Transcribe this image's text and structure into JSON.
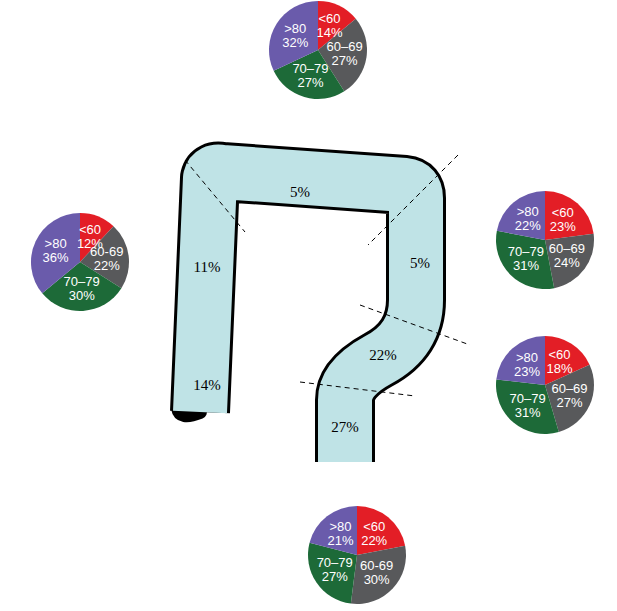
{
  "chart_data": [
    {
      "type": "pie",
      "categories": [
        "<60",
        "60–69",
        "70–79",
        ">80"
      ],
      "values": [
        14,
        27,
        27,
        32
      ],
      "value_labels": [
        "14%",
        "27%",
        "27%",
        "32%"
      ],
      "colors": [
        "#e31e26",
        "#58595b",
        "#1d6a38",
        "#6a5bab"
      ],
      "data_labels": true
    },
    {
      "type": "pie",
      "categories": [
        "<60",
        "60-69",
        "70–79",
        ">80"
      ],
      "values": [
        12,
        22,
        30,
        36
      ],
      "value_labels": [
        "12%",
        "22%",
        "30%",
        "36%"
      ],
      "colors": [
        "#e31e26",
        "#58595b",
        "#1d6a38",
        "#6a5bab"
      ],
      "data_labels": true
    },
    {
      "type": "pie",
      "categories": [
        "<60",
        "60–69",
        "70–79",
        ">80"
      ],
      "values": [
        23,
        24,
        31,
        22
      ],
      "value_labels": [
        "23%",
        "24%",
        "31%",
        "22%"
      ],
      "colors": [
        "#e31e26",
        "#58595b",
        "#1d6a38",
        "#6a5bab"
      ],
      "data_labels": true
    },
    {
      "type": "pie",
      "categories": [
        "<60",
        "60–69",
        "70–79",
        ">80"
      ],
      "values": [
        18,
        27,
        31,
        23
      ],
      "value_labels": [
        "18%",
        "27%",
        "31%",
        "23%"
      ],
      "colors": [
        "#e31e26",
        "#58595b",
        "#1d6a38",
        "#6a5bab"
      ],
      "data_labels": true
    },
    {
      "type": "pie",
      "categories": [
        "<60",
        "60-69",
        "70–79",
        ">80"
      ],
      "values": [
        22,
        30,
        27,
        21
      ],
      "value_labels": [
        "22%",
        "30%",
        "27%",
        "21%"
      ],
      "colors": [
        "#e31e26",
        "#58595b",
        "#1d6a38",
        "#6a5bab"
      ],
      "data_labels": true
    }
  ],
  "segments": {
    "values": [
      5,
      5,
      11,
      14,
      22,
      27
    ],
    "value_labels": [
      "5%",
      "5%",
      "11%",
      "14%",
      "22%",
      "27%"
    ]
  }
}
